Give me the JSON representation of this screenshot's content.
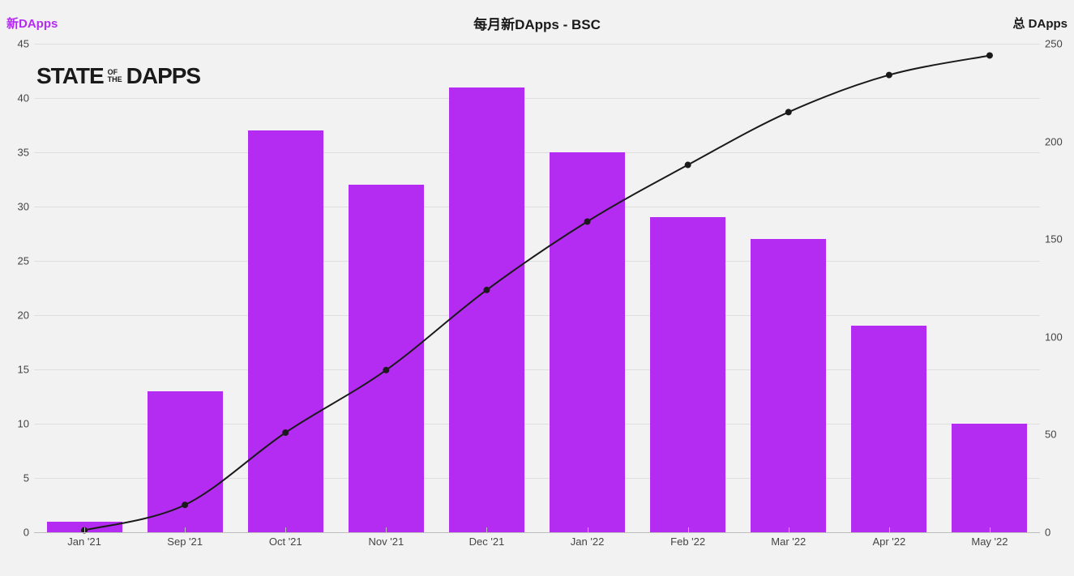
{
  "title": "每月新DApps - BSC",
  "legend": {
    "left": {
      "label": "新DApps",
      "color": "#b42bf2"
    },
    "right": {
      "label": "总 DApps",
      "color": "#1a1a1a"
    }
  },
  "watermark": {
    "state": "STATE",
    "of": "OF",
    "the": "THE",
    "dapps": "DAPPS"
  },
  "chart": {
    "type": "bar+line",
    "background_color": "#f2f2f2",
    "grid_color": "#dedede",
    "axis_color": "#bdbdbd",
    "categories": [
      "Jan '21",
      "Sep '21",
      "Oct '21",
      "Nov '21",
      "Dec '21",
      "Jan '22",
      "Feb '22",
      "Mar '22",
      "Apr '22",
      "May '22"
    ],
    "bars": {
      "values": [
        1,
        13,
        37,
        32,
        41,
        35,
        29,
        27,
        19,
        10
      ],
      "color": "#b42bf2",
      "width_frac": 0.75
    },
    "line": {
      "values": [
        1,
        14,
        51,
        83,
        124,
        159,
        188,
        215,
        234,
        244
      ],
      "stroke": "#1a1a1a",
      "stroke_width": 2,
      "marker_radius": 4,
      "marker_fill": "#1a1a1a"
    },
    "y_left": {
      "min": 0,
      "max": 45,
      "step": 5
    },
    "y_right": {
      "min": 0,
      "max": 250,
      "step": 50
    },
    "label_fontsize": 13,
    "title_fontsize": 17
  }
}
